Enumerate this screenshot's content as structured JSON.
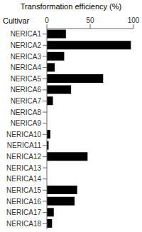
{
  "chart_data": {
    "type": "bar",
    "orientation": "horizontal",
    "title": "Transformation efficiency (%)",
    "ylabel": "Cultivar",
    "categories": [
      "NERICA1",
      "NERICA2",
      "NERICA3",
      "NERICA4",
      "NERICA5",
      "NERICA6",
      "NERICA7",
      "NERICA8",
      "NERICA9",
      "NERICA10",
      "NERICA11",
      "NERICA12",
      "NERICA13",
      "NERICA14",
      "NERICA15",
      "NERICA16",
      "NERICA17",
      "NERICA18"
    ],
    "values": [
      22,
      97,
      20,
      9,
      65,
      28,
      7,
      0,
      0,
      4,
      2,
      47,
      0,
      0,
      35,
      32,
      8,
      6
    ],
    "color": "#000000",
    "xlim": [
      0,
      100
    ],
    "xticks": [
      0,
      50,
      100
    ],
    "grid": false
  }
}
